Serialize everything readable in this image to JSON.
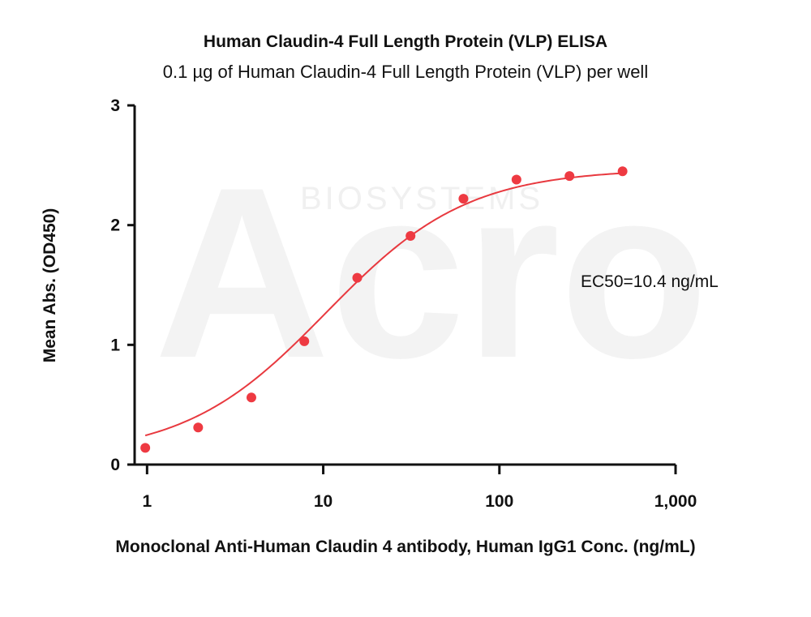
{
  "watermark": {
    "logo": "Acro",
    "text": "BIOSYSTEMS"
  },
  "chart_data": {
    "type": "scatter",
    "title": "Human Claudin-4 Full Length Protein (VLP) ELISA",
    "subtitle": "0.1 µg of Human Claudin-4 Full Length Protein (VLP) per well",
    "xlabel": "Monoclonal Anti-Human Claudin 4 antibody, Human IgG1 Conc. (ng/mL)",
    "ylabel": "Mean Abs. (OD450)",
    "x_scale": "log",
    "xlim": [
      0.85,
      1000
    ],
    "ylim": [
      0,
      3
    ],
    "x_ticks": [
      1,
      10,
      100,
      1000
    ],
    "x_tick_labels": [
      "1",
      "10",
      "100",
      "1,000"
    ],
    "y_ticks": [
      0,
      1,
      2,
      3
    ],
    "y_tick_labels": [
      "0",
      "1",
      "2",
      "3"
    ],
    "grid": false,
    "annotation": "EC50=10.4 ng/mL",
    "series_color": "#e8393f",
    "point_color": "#ee3a42",
    "points": {
      "x": [
        0.977,
        1.95,
        3.91,
        7.81,
        15.6,
        31.3,
        62.5,
        125,
        250,
        500
      ],
      "y": [
        0.14,
        0.31,
        0.56,
        1.03,
        1.56,
        1.91,
        2.22,
        2.38,
        2.41,
        2.45
      ]
    },
    "fit": {
      "model": "4PL",
      "bottom": 0.07,
      "top": 2.47,
      "ec50": 10.4,
      "hill": 1.08
    }
  }
}
